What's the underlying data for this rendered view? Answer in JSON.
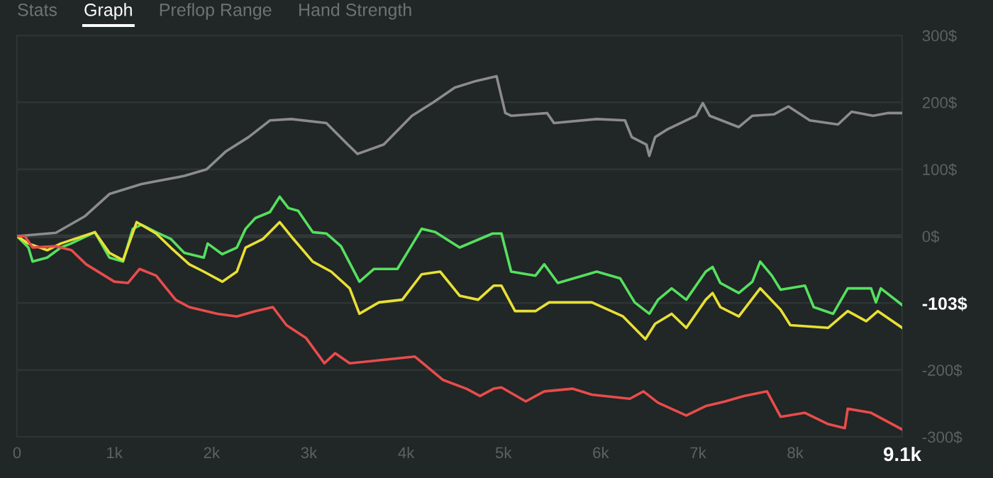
{
  "chart_data": {
    "type": "line",
    "annotations": [
      "Stats",
      "Graph",
      "Preflop Range",
      "Hand Strength",
      {
        "text": "-103$",
        "x": 9100,
        "y": -103
      }
    ],
    "xlim": [
      0,
      9100
    ],
    "xticks": [
      0,
      {
        "value": 1000,
        "label": "1k"
      },
      {
        "value": 2000,
        "label": "2k"
      },
      {
        "value": 3000,
        "label": "3k"
      },
      {
        "value": 4000,
        "label": "4k"
      },
      {
        "value": 5000,
        "label": "5k"
      },
      {
        "value": 6000,
        "label": "6k"
      },
      {
        "value": 7000,
        "label": "7k"
      },
      {
        "value": 8000,
        "label": "8k"
      },
      {
        "value": 9100,
        "label": "9.1k"
      }
    ],
    "ylim": [
      -300,
      300
    ],
    "yticks": [
      {
        "value": -300,
        "label": "-300$"
      },
      {
        "value": -200,
        "label": "-200$"
      },
      {
        "value": -100,
        "label": null
      },
      {
        "value": 0,
        "label": "0$"
      },
      {
        "value": 100,
        "label": "100$"
      },
      {
        "value": 200,
        "label": "200$"
      },
      {
        "value": 300,
        "label": "300$"
      }
    ],
    "grid": "y",
    "marker": "none",
    "line_style": "solid",
    "series": [
      {
        "color": "#8c8c8c",
        "x": [
          0,
          400,
          700,
          950,
          1280,
          1720,
          1950,
          2150,
          2380,
          2600,
          2820,
          3180,
          3400,
          3500,
          3770,
          4060,
          4280,
          4500,
          4720,
          4930,
          5020,
          5080,
          5450,
          5520,
          5960,
          6250,
          6320,
          6470,
          6500,
          6560,
          6690,
          6980,
          7050,
          7120,
          7420,
          7560,
          7780,
          7930,
          8150,
          8440,
          8580,
          8800,
          8950,
          9100
        ],
        "values": [
          0,
          5,
          30,
          63,
          78,
          90,
          100,
          127,
          148,
          173,
          175,
          169,
          137,
          123,
          137,
          180,
          200,
          222,
          232,
          239,
          184,
          180,
          184,
          169,
          175,
          173,
          148,
          137,
          120,
          148,
          160,
          180,
          199,
          180,
          163,
          180,
          182,
          194,
          173,
          167,
          186,
          180,
          184,
          184
        ]
      },
      {
        "color": "#55e05f",
        "x": [
          0,
          117,
          160,
          310,
          450,
          555,
          800,
          950,
          1090,
          1190,
          1280,
          1430,
          1580,
          1720,
          1920,
          1960,
          2110,
          2260,
          2350,
          2450,
          2600,
          2700,
          2790,
          2890,
          3040,
          3180,
          3330,
          3520,
          3670,
          3910,
          4010,
          4160,
          4300,
          4550,
          4890,
          4980,
          5080,
          5330,
          5420,
          5560,
          5960,
          6200,
          6350,
          6500,
          6590,
          6730,
          6880,
          7080,
          7150,
          7230,
          7420,
          7560,
          7640,
          7760,
          7850,
          8100,
          8190,
          8390,
          8540,
          8780,
          8830,
          8880,
          9100
        ],
        "values": [
          0,
          -17,
          -38,
          -32,
          -17,
          -11,
          6,
          -32,
          -38,
          11,
          17,
          6,
          -4,
          -25,
          -32,
          -11,
          -27,
          -17,
          11,
          27,
          36,
          59,
          42,
          38,
          6,
          4,
          -15,
          -68,
          -49,
          -49,
          -25,
          11,
          6,
          -17,
          4,
          4,
          -53,
          -59,
          -42,
          -70,
          -53,
          -63,
          -99,
          -116,
          -95,
          -78,
          -95,
          -53,
          -46,
          -70,
          -85,
          -68,
          -38,
          -59,
          -80,
          -74,
          -106,
          -116,
          -78,
          -78,
          -99,
          -78,
          -103
        ]
      },
      {
        "color": "#e8e035",
        "x": [
          0,
          117,
          310,
          450,
          800,
          950,
          1090,
          1230,
          1430,
          1580,
          1770,
          1920,
          2110,
          2260,
          2350,
          2530,
          2700,
          2840,
          3040,
          3230,
          3420,
          3520,
          3720,
          3960,
          4160,
          4350,
          4550,
          4740,
          4900,
          4980,
          5120,
          5330,
          5470,
          5910,
          6230,
          6460,
          6560,
          6730,
          6880,
          7080,
          7150,
          7230,
          7420,
          7640,
          7850,
          7950,
          8340,
          8540,
          8730,
          8850,
          9100
        ],
        "values": [
          0,
          -11,
          -21,
          -11,
          6,
          -25,
          -36,
          21,
          4,
          -17,
          -42,
          -53,
          -68,
          -53,
          -17,
          -4,
          21,
          -4,
          -38,
          -53,
          -78,
          -116,
          -99,
          -95,
          -57,
          -53,
          -89,
          -95,
          -74,
          -74,
          -112,
          -112,
          -99,
          -99,
          -120,
          -154,
          -131,
          -116,
          -137,
          -95,
          -85,
          -106,
          -120,
          -78,
          -110,
          -133,
          -137,
          -112,
          -127,
          -112,
          -137
        ]
      },
      {
        "color": "#e84c4c",
        "x": [
          0,
          80,
          160,
          400,
          560,
          710,
          1000,
          1140,
          1260,
          1430,
          1630,
          1770,
          2060,
          2260,
          2450,
          2630,
          2770,
          2970,
          3160,
          3270,
          3420,
          4090,
          4380,
          4620,
          4760,
          4900,
          4980,
          5230,
          5420,
          5710,
          5910,
          6300,
          6440,
          6590,
          6880,
          7080,
          7280,
          7470,
          7710,
          7850,
          8100,
          8340,
          8510,
          8540,
          8780,
          9100
        ],
        "values": [
          0,
          0,
          -17,
          -15,
          -21,
          -42,
          -68,
          -70,
          -49,
          -59,
          -95,
          -106,
          -116,
          -120,
          -112,
          -106,
          -133,
          -152,
          -190,
          -175,
          -190,
          -180,
          -215,
          -228,
          -239,
          -228,
          -226,
          -247,
          -232,
          -228,
          -237,
          -243,
          -232,
          -249,
          -268,
          -254,
          -247,
          -239,
          -232,
          -270,
          -264,
          -281,
          -287,
          -258,
          -264,
          -289
        ]
      }
    ]
  }
}
